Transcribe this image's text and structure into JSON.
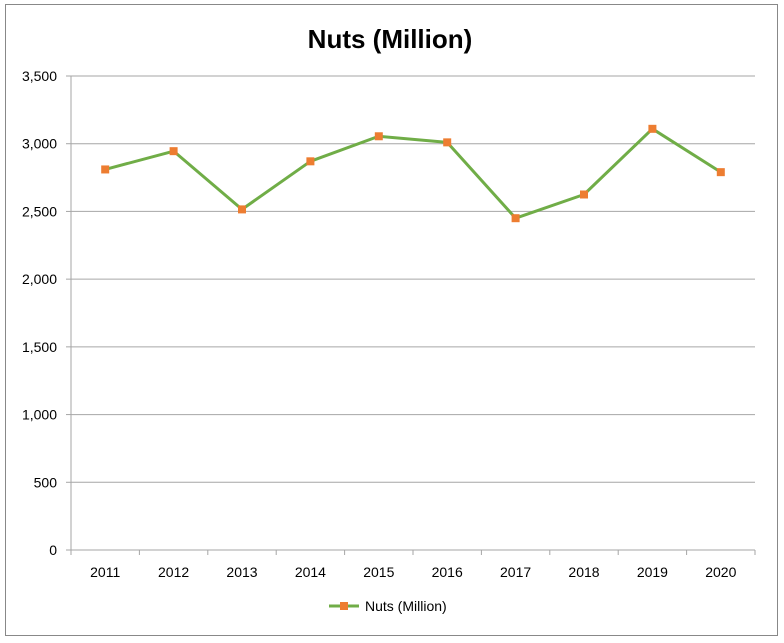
{
  "chart_data": {
    "type": "line",
    "title": "Nuts (Million)",
    "xlabel": "",
    "ylabel": "",
    "categories": [
      "2011",
      "2012",
      "2013",
      "2014",
      "2015",
      "2016",
      "2017",
      "2018",
      "2019",
      "2020"
    ],
    "series": [
      {
        "name": "Nuts (Million)",
        "values": [
          2810,
          2945,
          2515,
          2870,
          3055,
          3010,
          2450,
          2625,
          3110,
          2790
        ]
      }
    ],
    "ylim": [
      0,
      3500
    ],
    "yticks": [
      0,
      500,
      1000,
      1500,
      2000,
      2500,
      3000,
      3500
    ],
    "ytick_labels": [
      "0",
      "500",
      "1,000",
      "1,500",
      "2,000",
      "2,500",
      "3,000",
      "3,500"
    ],
    "grid": true,
    "legend": "bottom",
    "colors": {
      "line": "#70AD47",
      "marker": "#ED7D31",
      "grid": "#A6A6A6",
      "border": "#888888"
    }
  }
}
